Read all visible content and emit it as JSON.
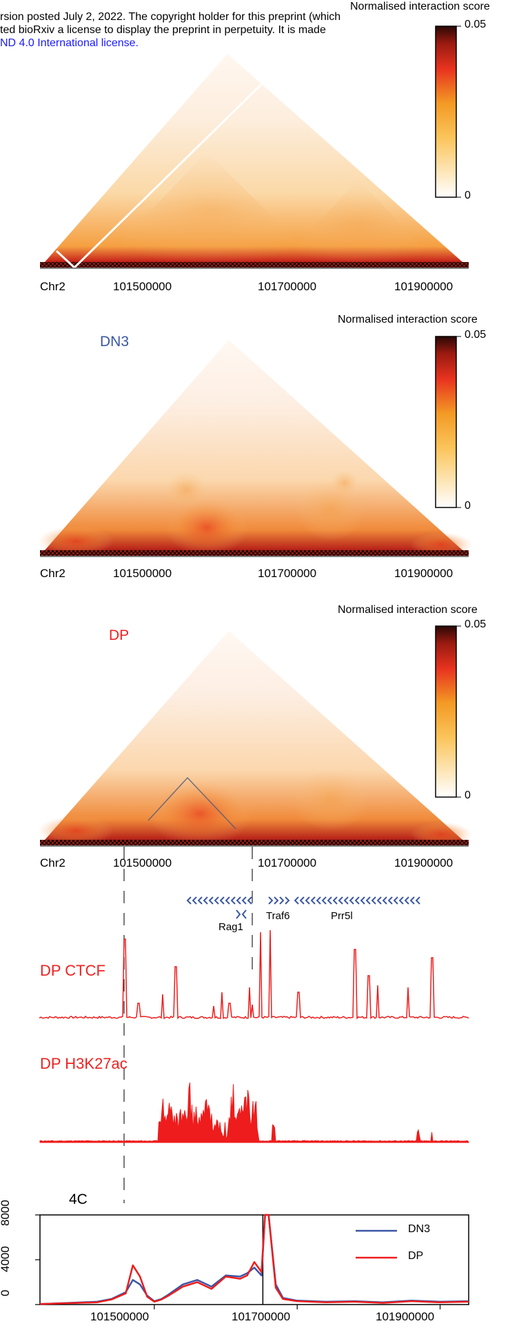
{
  "header": {
    "line1": "rsion posted July 2, 2022. The copyright holder for this preprint (which",
    "line2": "ted bioRxiv a license to display the preprint in perpetuity. It is made",
    "line3": "ND 4.0 International license."
  },
  "colors": {
    "title_blue": "#3a56a5",
    "title_red": "#ee2222",
    "track_red": "#ee1c1c",
    "gene_blue": "#3a56a5",
    "heat_low": "#ffffff",
    "heat_mid": "#f7a21b",
    "heat_high_red": "#e8251f",
    "heat_max": "#3a0a05"
  },
  "panels": [
    {
      "title": "",
      "colorbar_title": "Normalised interaction score",
      "colorbar_max": "0.05",
      "colorbar_min": "0",
      "chrom": "Chr2",
      "ticks": [
        "101500000",
        "101700000",
        "101900000"
      ]
    },
    {
      "title": "DN3",
      "colorbar_title": "Normalised interaction score",
      "colorbar_max": "0.05",
      "colorbar_min": "0",
      "chrom": "Chr2",
      "ticks": [
        "101500000",
        "101700000",
        "101900000"
      ]
    },
    {
      "title": "DP",
      "colorbar_title": "Normalised interaction score",
      "colorbar_max": "0.05",
      "colorbar_min": "0",
      "chrom": "Chr2",
      "ticks": [
        "101500000",
        "101700000",
        "101900000"
      ]
    }
  ],
  "genes": [
    {
      "name": "Rag1",
      "strand": "-"
    },
    {
      "name": "Traf6",
      "strand": "+"
    },
    {
      "name": "Prr5l",
      "strand": "-"
    }
  ],
  "tracks": {
    "ctcf_title": "DP CTCF",
    "h3k27ac_title": "DP H3K27ac"
  },
  "chart_data": {
    "type": "line",
    "title": "4C",
    "xlabel": "",
    "ylabel": "",
    "x_ticks": [
      "101500000",
      "101700000",
      "101900000"
    ],
    "y_ticks": [
      "0",
      "4000",
      "8000"
    ],
    "xlim": [
      101340000,
      101940000
    ],
    "ylim": [
      0,
      8000
    ],
    "viewpoint": 101650000,
    "series": [
      {
        "name": "DN3",
        "color": "#3a56a5",
        "x": [
          101340000,
          101380000,
          101420000,
          101440000,
          101460000,
          101470000,
          101480000,
          101490000,
          101500000,
          101510000,
          101520000,
          101540000,
          101560000,
          101580000,
          101600000,
          101620000,
          101630000,
          101640000,
          101650000,
          101655000,
          101660000,
          101670000,
          101680000,
          101700000,
          101740000,
          101780000,
          101820000,
          101860000,
          101900000,
          101940000
        ],
        "y": [
          50,
          150,
          250,
          500,
          1100,
          2200,
          1800,
          800,
          300,
          500,
          900,
          1800,
          2200,
          1600,
          2600,
          2500,
          2800,
          3300,
          2600,
          8000,
          8000,
          1800,
          600,
          350,
          250,
          300,
          200,
          350,
          250,
          300
        ]
      },
      {
        "name": "DP",
        "color": "#ee1c1c",
        "x": [
          101340000,
          101380000,
          101420000,
          101440000,
          101460000,
          101470000,
          101480000,
          101490000,
          101500000,
          101510000,
          101520000,
          101540000,
          101560000,
          101580000,
          101600000,
          101620000,
          101630000,
          101640000,
          101650000,
          101655000,
          101660000,
          101670000,
          101680000,
          101700000,
          101740000,
          101780000,
          101820000,
          101860000,
          101900000,
          101940000
        ],
        "y": [
          50,
          120,
          200,
          450,
          1000,
          3500,
          2500,
          700,
          250,
          450,
          800,
          1600,
          2000,
          1400,
          2500,
          2300,
          2600,
          3800,
          2900,
          8000,
          8000,
          1500,
          500,
          300,
          200,
          250,
          150,
          300,
          200,
          250
        ]
      }
    ]
  }
}
